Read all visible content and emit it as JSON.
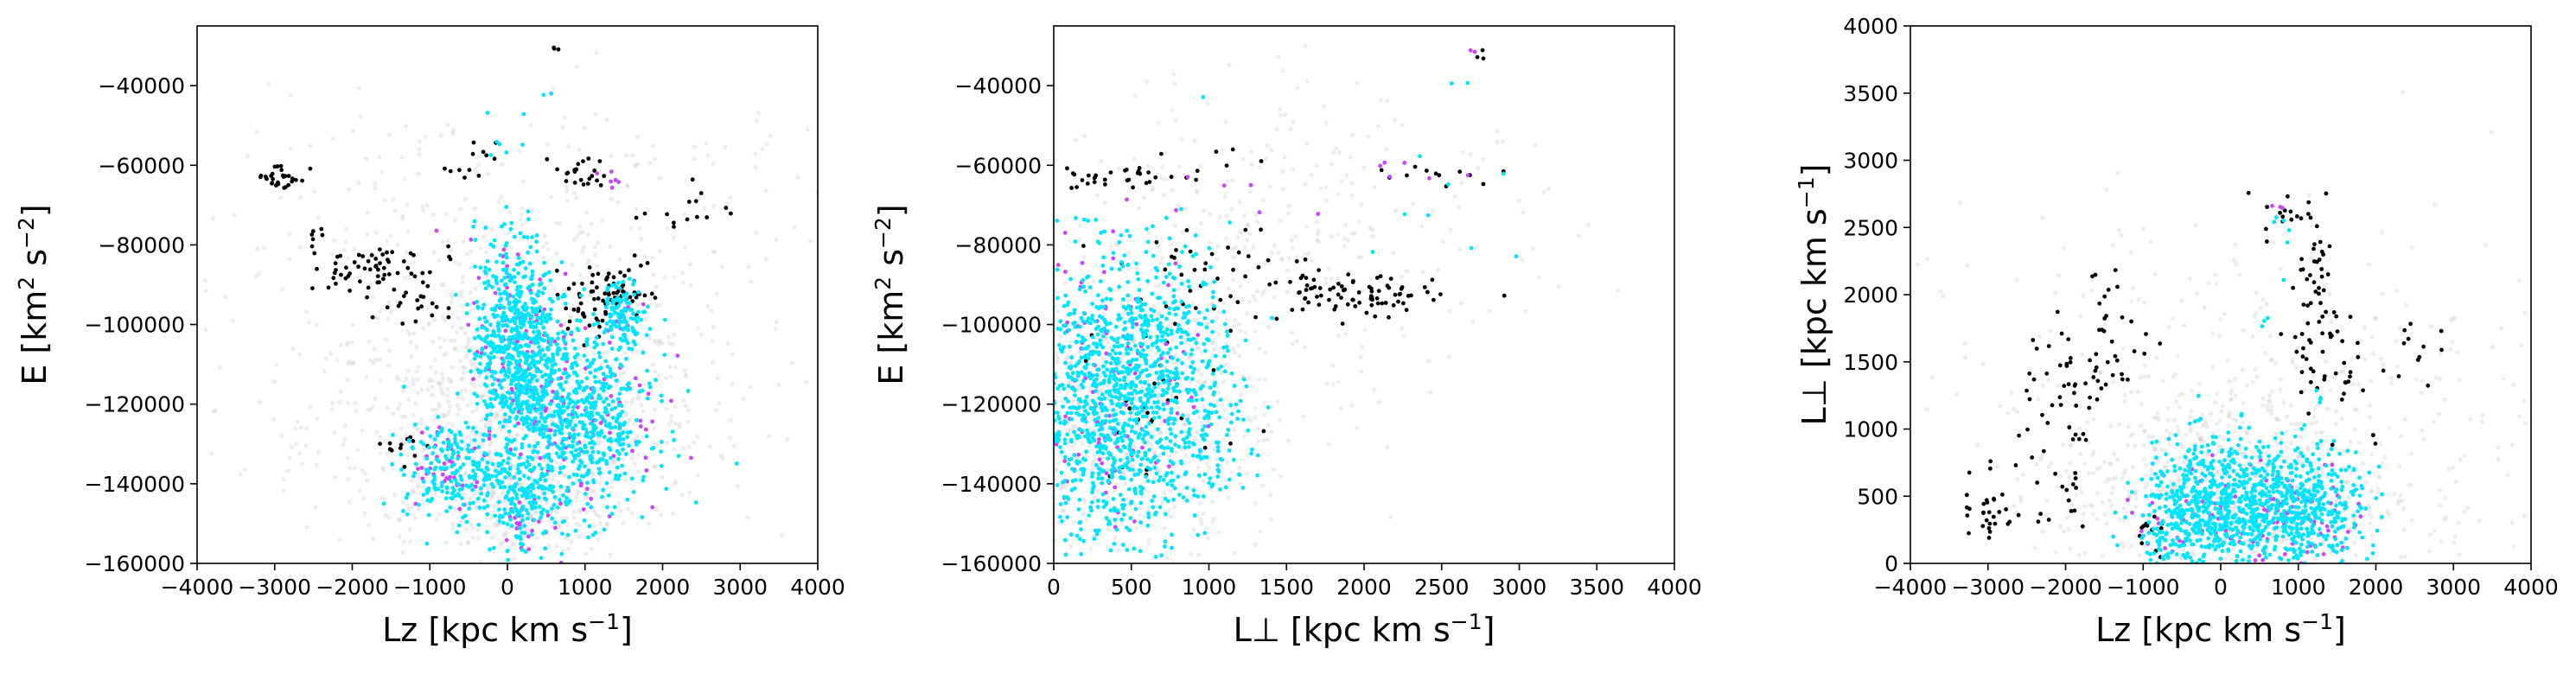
{
  "chart_data": [
    {
      "type": "scatter",
      "title": "",
      "xlabel": "Lz [kpc km s−1]",
      "ylabel": "E [km2 s−2]",
      "xlabel_parts": {
        "main": "Lz [kpc km s",
        "sup": "−1",
        "tail": "]"
      },
      "ylabel_parts": {
        "a": "E [km",
        "sup1": "2",
        "b": " s",
        "sup2": "−2",
        "c": "]"
      },
      "xlim": [
        -4000,
        4000
      ],
      "ylim": [
        -160000,
        -25000
      ],
      "xticks": [
        -4000,
        -3000,
        -2000,
        -1000,
        0,
        1000,
        2000,
        3000,
        4000
      ],
      "xtick_labels": [
        "−4000",
        "−3000",
        "−2000",
        "−1000",
        "0",
        "1000",
        "2000",
        "3000",
        "4000"
      ],
      "yticks": [
        -160000,
        -140000,
        -120000,
        -100000,
        -80000,
        -60000,
        -40000
      ],
      "ytick_labels": [
        "−160000",
        "−140000",
        "−120000",
        "−100000",
        "−80000",
        "−60000",
        "−40000"
      ],
      "grid": false,
      "series": [
        {
          "color": "#cccccc",
          "clusters": [
            [
              0,
              -125000,
              1300,
              14000,
              700
            ],
            [
              0,
              -100000,
              2000,
              22000,
              250
            ],
            [
              -1000,
              -80000,
              1300,
              18000,
              120
            ],
            [
              1500,
              -75000,
              1500,
              18000,
              120
            ],
            [
              200,
              -145000,
              600,
              7000,
              250
            ]
          ]
        },
        {
          "color": "#000000",
          "clusters": [
            [
              -2900,
              -63000,
              170,
              1800,
              28
            ],
            [
              -2500,
              -77000,
              90,
              2200,
              7
            ],
            [
              -1800,
              -86000,
              280,
              3200,
              42
            ],
            [
              -1400,
              -93000,
              230,
              2800,
              16
            ],
            [
              -2200,
              -89000,
              80,
              3500,
              10
            ],
            [
              -1100,
              -97000,
              130,
              2800,
              8
            ],
            [
              -450,
              -60000,
              150,
              2800,
              12
            ],
            [
              950,
              -62000,
              170,
              2200,
              22
            ],
            [
              1300,
              -92000,
              270,
              3000,
              65
            ],
            [
              1050,
              -98000,
              170,
              3000,
              14
            ],
            [
              2250,
              -71000,
              320,
              3500,
              14
            ],
            [
              1700,
              -84000,
              60,
              1500,
              3
            ],
            [
              -1250,
              -131000,
              150,
              2000,
              12
            ],
            [
              650,
              -31000,
              40,
              900,
              3
            ],
            [
              -700,
              -82000,
              60,
              1500,
              3
            ]
          ]
        },
        {
          "color": "#cc44ff",
          "clusters": [
            [
              -900,
              -134000,
              250,
              6500,
              35
            ],
            [
              100,
              -108000,
              300,
              15000,
              90
            ],
            [
              1000,
              -122000,
              500,
              14000,
              90
            ],
            [
              1300,
              -63000,
              100,
              2000,
              6
            ],
            [
              200,
              -150000,
              250,
              4000,
              20
            ],
            [
              1500,
              -95000,
              120,
              4000,
              6
            ]
          ]
        },
        {
          "color": "#00e5ff",
          "clusters": [
            [
              -700,
              -137000,
              320,
              6000,
              200
            ],
            [
              100,
              -105000,
              260,
              14000,
              650
            ],
            [
              900,
              -124000,
              480,
              12000,
              650
            ],
            [
              200,
              -145000,
              220,
              6500,
              150
            ],
            [
              1500,
              -97000,
              130,
              4000,
              100
            ],
            [
              -100,
              -52000,
              200,
              3500,
              6
            ],
            [
              500,
              -42000,
              80,
              1000,
              2
            ]
          ]
        }
      ]
    },
    {
      "type": "scatter",
      "title": "",
      "xlabel": "L⊥ [kpc km s−1]",
      "ylabel": "E [km2 s−2]",
      "xlabel_parts": {
        "main": "L⊥ [kpc km s",
        "sup": "−1",
        "tail": "]"
      },
      "ylabel_parts": {
        "a": "E [km",
        "sup1": "2",
        "b": " s",
        "sup2": "−2",
        "c": "]"
      },
      "xlim": [
        0,
        4000
      ],
      "ylim": [
        -160000,
        -25000
      ],
      "xticks": [
        0,
        500,
        1000,
        1500,
        2000,
        2500,
        3000,
        3500,
        4000
      ],
      "xtick_labels": [
        "0",
        "500",
        "1000",
        "1500",
        "2000",
        "2500",
        "3000",
        "3500",
        "4000"
      ],
      "yticks": [
        -160000,
        -140000,
        -120000,
        -100000,
        -80000,
        -60000,
        -40000
      ],
      "ytick_labels": [
        "−160000",
        "−140000",
        "−120000",
        "−100000",
        "−80000",
        "−60000",
        "−40000"
      ],
      "grid": false,
      "series": [
        {
          "color": "#cccccc",
          "clusters": [
            [
              450,
              -125000,
              450,
              15000,
              700
            ],
            [
              900,
              -95000,
              700,
              22000,
              250
            ],
            [
              1800,
              -80000,
              800,
              14000,
              120
            ],
            [
              1400,
              -60000,
              700,
              12000,
              60
            ]
          ]
        },
        {
          "color": "#000000",
          "clusters": [
            [
              400,
              -63000,
              230,
              1800,
              30
            ],
            [
              1900,
              -93000,
              280,
              3000,
              75
            ],
            [
              1200,
              -87000,
              450,
              4500,
              45
            ],
            [
              700,
              -120000,
              300,
              12000,
              35
            ],
            [
              2500,
              -62000,
              200,
              1500,
              12
            ],
            [
              2750,
              -32000,
              40,
              1000,
              3
            ],
            [
              1000,
              -58000,
              150,
              3000,
              8
            ]
          ]
        },
        {
          "color": "#cc44ff",
          "clusters": [
            [
              350,
              -115000,
              300,
              18000,
              130
            ],
            [
              2300,
              -62000,
              150,
              2000,
              6
            ],
            [
              2700,
              -32000,
              30,
              700,
              2
            ],
            [
              1500,
              -65000,
              300,
              5000,
              5
            ]
          ]
        },
        {
          "color": "#00e5ff",
          "clusters": [
            [
              350,
              -120000,
              320,
              18000,
              1100
            ],
            [
              750,
              -103000,
              200,
              12000,
              180
            ],
            [
              1000,
              -130000,
              200,
              7000,
              70
            ],
            [
              2400,
              -70000,
              300,
              10000,
              8
            ],
            [
              2600,
              -42000,
              60,
              2000,
              2
            ]
          ]
        }
      ]
    },
    {
      "type": "scatter",
      "title": "",
      "xlabel": "Lz [kpc km s−1]",
      "ylabel": "L⊥ [kpc km s−1]",
      "xlabel_parts": {
        "main": "Lz [kpc km s",
        "sup": "−1",
        "tail": "]"
      },
      "ylabel_parts": {
        "main": "L⊥ [kpc km s",
        "sup": "−1",
        "tail": "]"
      },
      "xlim": [
        -4000,
        4000
      ],
      "ylim": [
        0,
        4000
      ],
      "xticks": [
        -4000,
        -3000,
        -2000,
        -1000,
        0,
        1000,
        2000,
        3000,
        4000
      ],
      "xtick_labels": [
        "−4000",
        "−3000",
        "−2000",
        "−1000",
        "0",
        "1000",
        "2000",
        "3000",
        "4000"
      ],
      "yticks": [
        0,
        500,
        1000,
        1500,
        2000,
        2500,
        3000,
        3500,
        4000
      ],
      "ytick_labels": [
        "0",
        "500",
        "1000",
        "1500",
        "2000",
        "2500",
        "3000",
        "3500",
        "4000"
      ],
      "grid": false,
      "series": [
        {
          "color": "#cccccc",
          "clusters": [
            [
              0,
              500,
              1100,
              420,
              700
            ],
            [
              0,
              1300,
              2200,
              700,
              250
            ],
            [
              1800,
              1000,
              1500,
              700,
              100
            ]
          ]
        },
        {
          "color": "#000000",
          "clusters": [
            [
              -3000,
              450,
              180,
              200,
              30
            ],
            [
              -2400,
              900,
              110,
              350,
              18
            ],
            [
              -1800,
              1350,
              220,
              350,
              40
            ],
            [
              -1350,
              1700,
              220,
              250,
              25
            ],
            [
              -1850,
              600,
              100,
              150,
              8
            ],
            [
              1200,
              2200,
              150,
              300,
              40
            ],
            [
              1300,
              1550,
              220,
              220,
              40
            ],
            [
              800,
              2650,
              150,
              120,
              10
            ],
            [
              2350,
              1600,
              200,
              150,
              12
            ],
            [
              -900,
              200,
              120,
              100,
              12
            ],
            [
              2000,
              950,
              30,
              30,
              2
            ]
          ]
        },
        {
          "color": "#cc44ff",
          "clusters": [
            [
              0,
              350,
              500,
              220,
              60
            ],
            [
              1100,
              350,
              400,
              200,
              55
            ],
            [
              -900,
              200,
              120,
              80,
              4
            ],
            [
              700,
              2650,
              60,
              80,
              3
            ]
          ]
        },
        {
          "color": "#00e5ff",
          "clusters": [
            [
              -100,
              420,
              450,
              250,
              600
            ],
            [
              1000,
              400,
              420,
              230,
              500
            ],
            [
              -600,
              250,
              200,
              150,
              50
            ],
            [
              600,
              1900,
              60,
              150,
              3
            ],
            [
              1300,
              1250,
              40,
              100,
              4
            ],
            [
              800,
              2550,
              60,
              150,
              6
            ]
          ]
        }
      ]
    }
  ]
}
